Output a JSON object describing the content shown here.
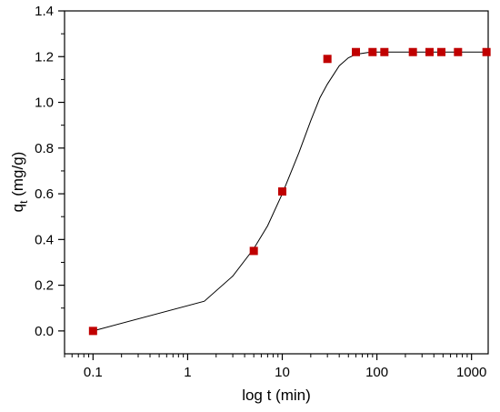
{
  "chart_data": {
    "type": "scatter",
    "xlabel": "log t (min)",
    "ylabel_main": "q",
    "ylabel_sub": "t",
    "ylabel_unit": " (mg/g)",
    "x_scale": "log",
    "xlim": [
      0.05,
      1500
    ],
    "ylim": [
      -0.1,
      1.4
    ],
    "x_ticks": [
      0.1,
      1,
      10,
      100,
      1000
    ],
    "x_tick_labels": [
      "0.1",
      "1",
      "10",
      "100",
      "1000"
    ],
    "y_ticks": [
      0.0,
      0.2,
      0.4,
      0.6,
      0.8,
      1.0,
      1.2,
      1.4
    ],
    "y_tick_labels": [
      "0.0",
      "0.2",
      "0.4",
      "0.6",
      "0.8",
      "1.0",
      "1.2",
      "1.4"
    ],
    "grid": false,
    "series": [
      {
        "kind": "scatter",
        "marker": "square",
        "color": "#c00000",
        "points": [
          {
            "x": 0.1,
            "y": 0.0
          },
          {
            "x": 5,
            "y": 0.35
          },
          {
            "x": 10,
            "y": 0.61
          },
          {
            "x": 30,
            "y": 1.19
          },
          {
            "x": 60,
            "y": 1.22
          },
          {
            "x": 90,
            "y": 1.22
          },
          {
            "x": 120,
            "y": 1.22
          },
          {
            "x": 240,
            "y": 1.22
          },
          {
            "x": 360,
            "y": 1.22
          },
          {
            "x": 480,
            "y": 1.22
          },
          {
            "x": 720,
            "y": 1.22
          },
          {
            "x": 1440,
            "y": 1.22
          }
        ]
      },
      {
        "kind": "line",
        "color": "#000000",
        "points": [
          {
            "x": 0.1,
            "y": 0.0
          },
          {
            "x": 1.5,
            "y": 0.13
          },
          {
            "x": 3,
            "y": 0.24
          },
          {
            "x": 5,
            "y": 0.36
          },
          {
            "x": 7,
            "y": 0.46
          },
          {
            "x": 10,
            "y": 0.6
          },
          {
            "x": 15,
            "y": 0.78
          },
          {
            "x": 20,
            "y": 0.92
          },
          {
            "x": 25,
            "y": 1.02
          },
          {
            "x": 30,
            "y": 1.08
          },
          {
            "x": 40,
            "y": 1.16
          },
          {
            "x": 50,
            "y": 1.195
          },
          {
            "x": 60,
            "y": 1.21
          },
          {
            "x": 80,
            "y": 1.218
          },
          {
            "x": 100,
            "y": 1.22
          },
          {
            "x": 200,
            "y": 1.22
          },
          {
            "x": 1500,
            "y": 1.22
          }
        ]
      }
    ]
  }
}
